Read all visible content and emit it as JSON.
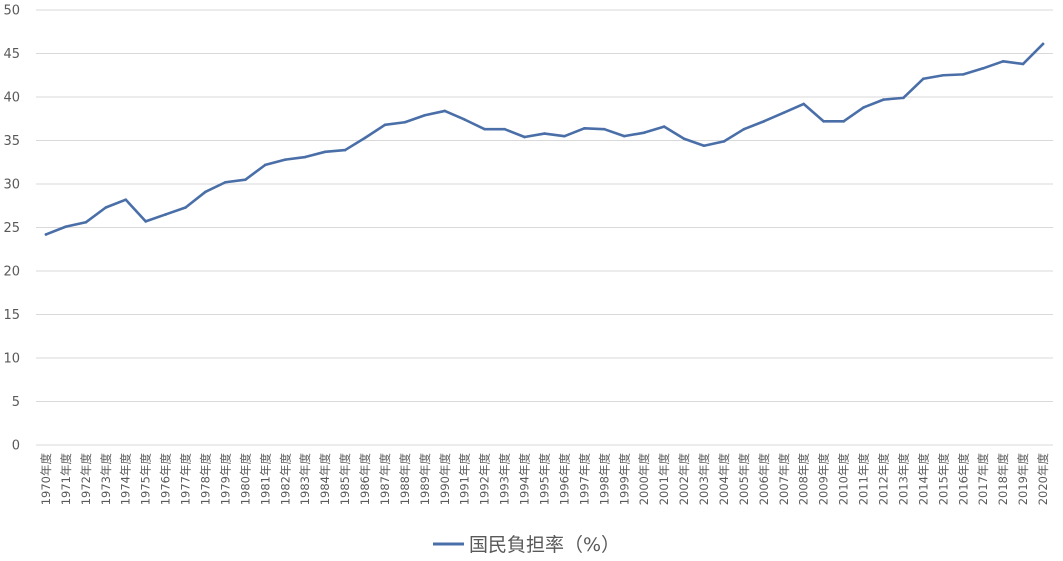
{
  "chart_data": {
    "type": "line",
    "categories": [
      "1970年度",
      "1971年度",
      "1972年度",
      "1973年度",
      "1974年度",
      "1975年度",
      "1976年度",
      "1977年度",
      "1978年度",
      "1979年度",
      "1980年度",
      "1981年度",
      "1982年度",
      "1983年度",
      "1984年度",
      "1985年度",
      "1986年度",
      "1987年度",
      "1988年度",
      "1989年度",
      "1990年度",
      "1991年度",
      "1992年度",
      "1993年度",
      "1994年度",
      "1995年度",
      "1996年度",
      "1997年度",
      "1998年度",
      "1999年度",
      "2000年度",
      "2001年度",
      "2002年度",
      "2003年度",
      "2004年度",
      "2005年度",
      "2006年度",
      "2007年度",
      "2008年度",
      "2009年度",
      "2010年度",
      "2011年度",
      "2012年度",
      "2013年度",
      "2014年度",
      "2015年度",
      "2016年度",
      "2017年度",
      "2018年度",
      "2019年度",
      "2020年度"
    ],
    "series": [
      {
        "name": "国民負担率（%）",
        "color": "#4a6fa8",
        "values": [
          24.2,
          25.1,
          25.6,
          27.3,
          28.2,
          25.7,
          26.5,
          27.3,
          29.1,
          30.2,
          30.5,
          32.2,
          32.8,
          33.1,
          33.7,
          33.9,
          35.3,
          36.8,
          37.1,
          37.9,
          38.4,
          37.4,
          36.3,
          36.3,
          35.4,
          35.8,
          35.5,
          36.4,
          36.3,
          35.5,
          35.9,
          36.6,
          35.2,
          34.4,
          34.9,
          36.3,
          37.2,
          38.2,
          39.2,
          37.2,
          37.2,
          38.8,
          39.7,
          39.9,
          42.1,
          42.5,
          42.6,
          43.3,
          44.1,
          43.8,
          46.1
        ]
      }
    ],
    "xlabel": "",
    "ylabel": "",
    "ylim": [
      0,
      50
    ],
    "yticks": [
      0,
      5,
      10,
      15,
      20,
      25,
      30,
      35,
      40,
      45,
      50
    ],
    "grid": true,
    "legend_position": "bottom-center"
  }
}
